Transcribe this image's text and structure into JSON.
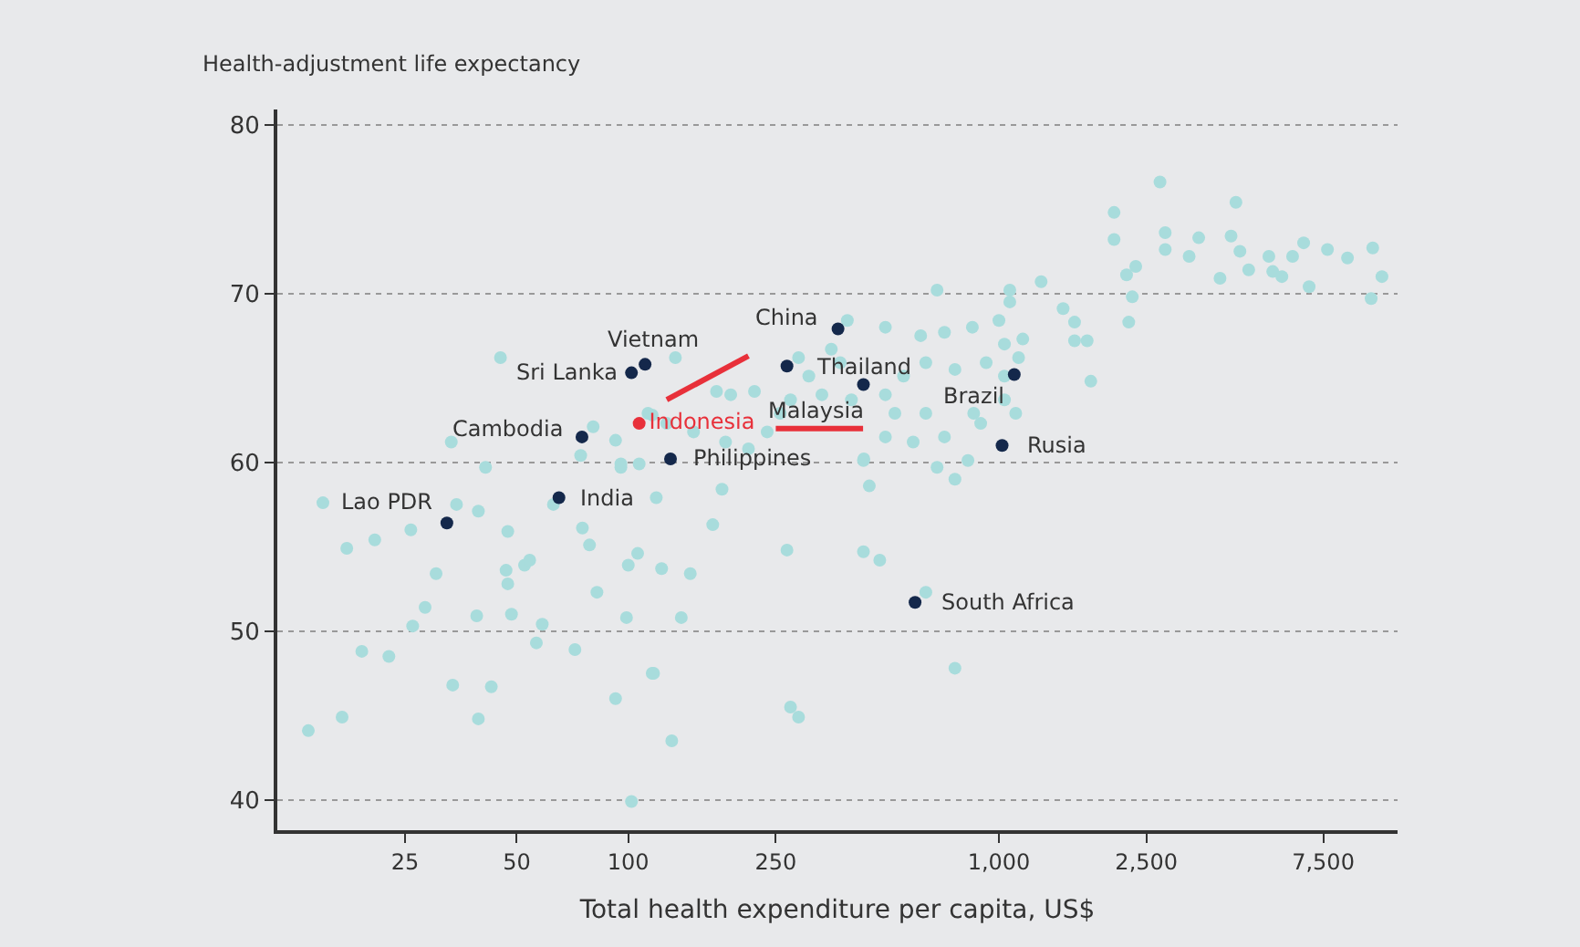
{
  "chart_data": {
    "type": "scatter",
    "ylabel": "Health-adjustment life expectancy",
    "xlabel": "Total health expenditure per capita, US$",
    "log": "x",
    "grid": "y",
    "legend": false,
    "marker": "circle",
    "xlim": [
      11.3,
      11900
    ],
    "xticks": [
      25,
      50,
      100,
      250,
      {
        "value": 1000,
        "label": "1,000"
      },
      {
        "value": 2500,
        "label": "2,500"
      },
      {
        "value": 7500,
        "label": "7,500"
      }
    ],
    "ylim": [
      38.2,
      80.9
    ],
    "yticks": [
      40,
      50,
      60,
      70,
      80
    ],
    "series": [
      {
        "color": "#a8dcdc",
        "x": [
          15,
          17.4,
          20.7,
          25.9,
          30.3,
          28.3,
          26.2,
          19.1,
          22.6,
          13.7,
          16.9,
          33.6,
          42.7,
          39.4,
          39.0,
          48.4,
          47.3,
          46.8,
          52.5,
          54.2,
          47.3,
          41.2,
          39.4,
          34.4,
          58.6,
          56.5,
          71.8,
          92.4,
          82.3,
          78.6,
          75.2,
          100,
          106,
          98.9,
          116,
          102,
          95.5,
          107,
          62.8,
          45.2,
          33.3,
          80.4,
          92.4,
          95.5,
          74.4,
          116,
          119,
          179,
          169,
          123,
          147,
          268,
          431,
          477,
          139,
          117,
          274,
          288,
          131,
          761,
          635,
          447,
          681,
          761,
          432,
          390,
          494,
          615,
          713,
          848,
          1000,
          1070,
          1070,
          681,
          288,
          353,
          373,
          307,
          219,
          189,
          173,
          134,
          333,
          400,
          494,
          553,
          635,
          761,
          924,
          1035,
          1035,
          855,
          635,
          524,
          494,
          587,
          713,
          893,
          274,
          257,
          211,
          183,
          150,
          127,
          113,
          237,
          431,
          825,
          1035,
          2720,
          4360,
          2045,
          2045,
          2810,
          2810,
          3460,
          4230,
          4470,
          3260,
          2340,
          2210,
          6640,
          7700,
          10200,
          8720,
          6200,
          5350,
          4720,
          5480,
          5800,
          3950,
          6870,
          10800,
          10100,
          2290,
          1490,
          1600,
          1730,
          1600,
          2240,
          1770,
          1300,
          1160,
          1130,
          1110
        ],
        "values": [
          57.6,
          54.9,
          55.4,
          56.0,
          53.4,
          51.4,
          50.3,
          48.8,
          48.5,
          44.1,
          44.9,
          46.8,
          46.7,
          44.8,
          50.9,
          51.0,
          55.9,
          53.6,
          53.9,
          54.2,
          52.8,
          59.7,
          57.1,
          57.5,
          50.4,
          49.3,
          48.9,
          46.0,
          52.3,
          55.1,
          56.1,
          53.9,
          54.6,
          50.8,
          47.5,
          39.9,
          59.7,
          59.9,
          57.5,
          66.2,
          61.2,
          62.1,
          61.3,
          59.9,
          60.4,
          62.8,
          57.9,
          58.4,
          56.3,
          53.7,
          53.4,
          54.8,
          54.7,
          54.2,
          50.8,
          47.5,
          45.5,
          44.9,
          43.5,
          47.8,
          52.3,
          58.6,
          59.7,
          59.0,
          60.2,
          68.4,
          68.0,
          67.5,
          67.7,
          68.0,
          68.4,
          69.5,
          70.2,
          70.2,
          66.2,
          66.7,
          65.9,
          65.1,
          64.2,
          64.0,
          64.2,
          66.2,
          64.0,
          63.7,
          64.0,
          65.1,
          65.9,
          65.5,
          65.9,
          65.1,
          63.7,
          62.9,
          62.9,
          62.9,
          61.5,
          61.2,
          61.5,
          62.3,
          63.7,
          62.9,
          60.8,
          61.2,
          61.8,
          62.3,
          62.9,
          61.8,
          60.1,
          60.1,
          67.0,
          76.6,
          75.4,
          74.8,
          73.2,
          73.6,
          72.6,
          73.3,
          73.4,
          72.5,
          72.2,
          71.6,
          71.1,
          73.0,
          72.6,
          72.7,
          72.1,
          72.2,
          72.2,
          71.4,
          71.3,
          71.0,
          70.9,
          70.4,
          71.0,
          69.7,
          69.8,
          69.1,
          68.3,
          67.2,
          67.2,
          68.3,
          64.8,
          70.7,
          67.3,
          66.2,
          62.9
        ]
      },
      {
        "color": "#14284b",
        "x": [
          32.4,
          65,
          75,
          102,
          111,
          130,
          368,
          268,
          431,
          1100,
          1020,
          594
        ],
        "values": [
          56.4,
          57.9,
          61.5,
          65.3,
          65.8,
          60.2,
          67.9,
          65.7,
          64.6,
          65.2,
          61.0,
          51.7
        ]
      },
      {
        "name": "Indonesia",
        "color": "#e8303a",
        "x": [
          107
        ],
        "values": [
          62.3
        ]
      },
      {
        "type": "line",
        "color": "#e8303a",
        "line_style": "solid",
        "marker": "none",
        "x": [
          127,
          211
        ],
        "values": [
          63.7,
          66.3
        ]
      },
      {
        "type": "line",
        "color": "#e8303a",
        "line_style": "solid",
        "marker": "none",
        "x": [
          250,
          430
        ],
        "values": [
          62.0,
          62.0
        ]
      }
    ],
    "annotations": [
      {
        "text": "Lao PDR",
        "x": 32.4,
        "y": 56.4
      },
      {
        "text": "India",
        "x": 65,
        "y": 57.9
      },
      {
        "text": "Cambodia",
        "x": 75,
        "y": 61.5
      },
      {
        "text": "Sri Lanka",
        "x": 102,
        "y": 65.3
      },
      {
        "text": "Vietnam",
        "x": 111,
        "y": 65.8
      },
      {
        "text": "Philippines",
        "x": 130,
        "y": 60.2
      },
      {
        "text": "China",
        "x": 368,
        "y": 67.9
      },
      {
        "text": "Thailand",
        "x": 268,
        "y": 65.7
      },
      {
        "text": "Malaysia",
        "x": 431,
        "y": 64.6
      },
      {
        "text": "Brazil",
        "x": 1100,
        "y": 65.2
      },
      {
        "text": "Rusia",
        "x": 1020,
        "y": 61.0
      },
      {
        "text": "South Africa",
        "x": 594,
        "y": 51.7
      }
    ]
  }
}
